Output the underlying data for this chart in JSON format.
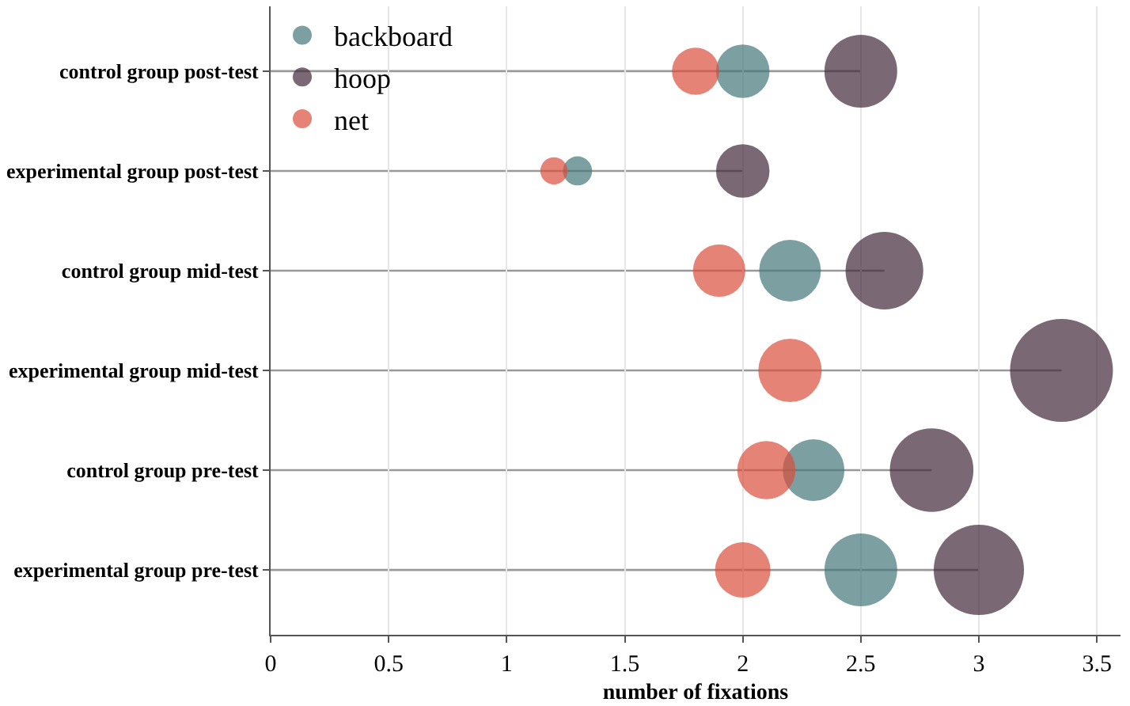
{
  "chart_data": {
    "type": "bubble",
    "orientation": "horizontal",
    "xlabel": "number of fixations",
    "categories": [
      "control group post-test",
      "experimental group post-test",
      "control group mid-test",
      "experimental group mid-test",
      "control group pre-test",
      "experimental group pre-test"
    ],
    "series": [
      {
        "name": "backboard",
        "color": "#44787a",
        "values": [
          2.0,
          1.3,
          2.2,
          null,
          2.3,
          2.5
        ],
        "sizes": [
          0.27,
          0.08,
          0.36,
          null,
          0.36,
          0.5
        ]
      },
      {
        "name": "hoop",
        "color": "#43283b",
        "values": [
          2.5,
          2.0,
          2.6,
          3.35,
          2.8,
          3.0
        ],
        "sizes": [
          0.5,
          0.27,
          0.57,
          1,
          0.66,
          0.77
        ]
      },
      {
        "name": "net",
        "color": "#d94e3c",
        "values": [
          1.8,
          1.2,
          1.9,
          2.2,
          2.1,
          2.0
        ],
        "sizes": [
          0.21,
          0.07,
          0.26,
          0.38,
          0.32,
          0.29
        ]
      }
    ],
    "xlim": [
      0,
      3.6
    ],
    "xticks": [
      0,
      0.5,
      1,
      1.5,
      2,
      2.5,
      3,
      3.5
    ],
    "grid": "x",
    "legend": "top left"
  }
}
